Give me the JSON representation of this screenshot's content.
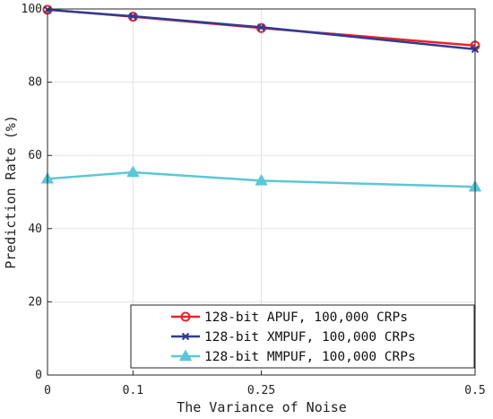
{
  "chart_data": {
    "type": "line",
    "xlabel": "The Variance of Noise",
    "ylabel": "Prediction Rate (%)",
    "x": [
      0,
      0.1,
      0.25,
      0.5
    ],
    "x_tick_labels": [
      "0",
      "0.1",
      "0.25",
      "0.5"
    ],
    "y_ticks": [
      0,
      20,
      40,
      60,
      80,
      100
    ],
    "y_tick_labels": [
      "0",
      "20",
      "40",
      "60",
      "80",
      "100"
    ],
    "ylim": [
      0,
      100
    ],
    "grid": true,
    "legend_position": "bottom-right",
    "series": [
      {
        "name": "128-bit APUF, 100,000 CRPs",
        "values": [
          99.8,
          97.9,
          94.8,
          90.0
        ],
        "color": "#e8242b",
        "marker": "circle"
      },
      {
        "name": "128-bit XMPUF, 100,000 CRPs",
        "values": [
          99.8,
          98.0,
          95.0,
          89.0
        ],
        "color": "#2e3c96",
        "marker": "x"
      },
      {
        "name": "128-bit MMPUF, 100,000 CRPs",
        "values": [
          53.6,
          55.4,
          53.1,
          51.4
        ],
        "color": "#5bc7d6",
        "marker": "triangle"
      }
    ]
  }
}
